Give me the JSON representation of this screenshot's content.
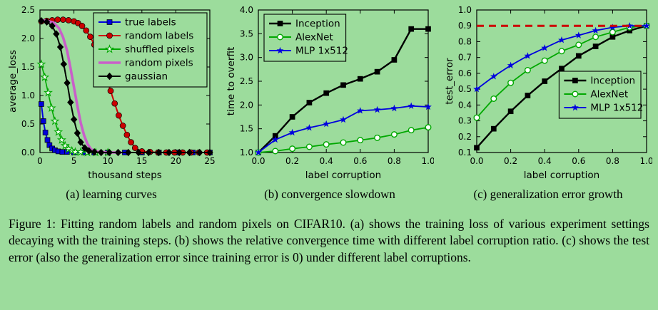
{
  "colors": {
    "background": "#9cdc9c",
    "axis": "#000000",
    "refline_red": "#cc0000"
  },
  "caption": "Figure 1: Fitting random labels and random pixels on CIFAR10. (a) shows the training loss of various experiment settings decaying with the training steps. (b) shows the relative convergence time with different label corruption ratio. (c) shows the test error (also the generalization error since training error is 0) under different label corruptions.",
  "chart_data": [
    {
      "type": "line",
      "name": "learning-curves",
      "subcaption": "(a) learning curves",
      "xlabel": "thousand steps",
      "ylabel": "average_loss",
      "xlim": [
        0,
        25
      ],
      "ylim": [
        0,
        2.5
      ],
      "xticks": [
        0,
        5,
        10,
        15,
        20,
        25
      ],
      "xtick_labels": [
        "0",
        "5",
        "10",
        "15",
        "20",
        "25"
      ],
      "yticks": [
        0.0,
        0.5,
        1.0,
        1.5,
        2.0,
        2.5
      ],
      "ytick_labels": [
        "0.0",
        "0.5",
        "1.0",
        "1.5",
        "2.0",
        "2.5"
      ],
      "grid": false,
      "legend_pos": "upper-right",
      "reflines": [],
      "series": [
        {
          "label": "true labels",
          "color": "#0000dd",
          "marker": "square",
          "width": 2,
          "x": [
            0.2,
            0.5,
            0.8,
            1.1,
            1.4,
            1.8,
            2.2,
            2.7,
            3.3,
            4,
            5,
            6.5,
            8,
            10,
            12.5,
            15,
            17.5,
            20,
            22.5,
            25
          ],
          "y": [
            0.85,
            0.55,
            0.35,
            0.22,
            0.13,
            0.07,
            0.04,
            0.02,
            0.01,
            0.01,
            0,
            0,
            0,
            0,
            0,
            0,
            0,
            0,
            0,
            0
          ]
        },
        {
          "label": "random labels",
          "color": "#cc0000",
          "marker": "circle-filled",
          "width": 2,
          "x": [
            0.2,
            1,
            1.8,
            2.6,
            3.4,
            4.2,
            5,
            5.6,
            6.2,
            6.8,
            7.4,
            8,
            8.6,
            9.2,
            9.8,
            10.4,
            11,
            11.6,
            12.2,
            12.8,
            13.4,
            14,
            15,
            16.2,
            17.4,
            18.6,
            19.8,
            21,
            22.2,
            23.4,
            24.6
          ],
          "y": [
            2.3,
            2.31,
            2.32,
            2.33,
            2.33,
            2.32,
            2.3,
            2.27,
            2.22,
            2.14,
            2.03,
            1.89,
            1.72,
            1.52,
            1.3,
            1.08,
            0.86,
            0.65,
            0.47,
            0.31,
            0.18,
            0.08,
            0.02,
            0.01,
            0,
            0,
            0,
            0,
            0,
            0,
            0
          ]
        },
        {
          "label": "shuffled pixels",
          "color": "#00a800",
          "marker": "star-open",
          "width": 1.6,
          "x": [
            0.2,
            0.7,
            1.2,
            1.7,
            2.2,
            2.7,
            3.2,
            3.7,
            4.2,
            4.7,
            5.2,
            6,
            7,
            8.2,
            10
          ],
          "y": [
            1.55,
            1.32,
            1.05,
            0.78,
            0.55,
            0.36,
            0.22,
            0.12,
            0.06,
            0.03,
            0.01,
            0.01,
            0,
            0,
            0
          ]
        },
        {
          "label": "random pixels",
          "color": "#c95fc9",
          "marker": "none",
          "width": 3.6,
          "x": [
            0.2,
            1,
            2,
            2.8,
            3.4,
            4,
            4.5,
            5,
            5.5,
            6,
            6.5,
            7,
            7.5,
            8,
            9,
            10,
            12
          ],
          "y": [
            2.32,
            2.31,
            2.28,
            2.18,
            2.02,
            1.78,
            1.48,
            1.15,
            0.82,
            0.52,
            0.3,
            0.15,
            0.06,
            0.02,
            0.01,
            0,
            0
          ]
        },
        {
          "label": "gaussian",
          "color": "#000000",
          "marker": "diamond",
          "width": 2,
          "x": [
            0.2,
            1,
            1.8,
            2.4,
            3,
            3.5,
            4,
            4.5,
            5,
            5.5,
            6,
            6.6,
            7.2,
            8,
            9,
            10.2,
            11.5,
            13,
            14.5,
            16,
            17.5,
            19,
            20.5,
            22,
            23.5,
            25
          ],
          "y": [
            2.31,
            2.29,
            2.22,
            2.08,
            1.85,
            1.55,
            1.22,
            0.88,
            0.58,
            0.34,
            0.18,
            0.08,
            0.03,
            0.01,
            0,
            0,
            0,
            0,
            0,
            0,
            0,
            0,
            0,
            0,
            0,
            0
          ]
        }
      ]
    },
    {
      "type": "line",
      "name": "convergence-slowdown",
      "subcaption": "(b) convergence slowdown",
      "xlabel": "label corruption",
      "ylabel": "time to overfit",
      "xlim": [
        0,
        1.0
      ],
      "ylim": [
        1.0,
        4.0
      ],
      "xticks": [
        0,
        0.2,
        0.4,
        0.6,
        0.8,
        1.0
      ],
      "xtick_labels": [
        "0.0",
        "0.2",
        "0.4",
        "0.6",
        "0.8",
        "1.0"
      ],
      "yticks": [
        1.0,
        1.5,
        2.0,
        2.5,
        3.0,
        3.5,
        4.0
      ],
      "ytick_labels": [
        "1.0",
        "1.5",
        "2.0",
        "2.5",
        "3.0",
        "3.5",
        "4.0"
      ],
      "grid": false,
      "legend_pos": "upper-left",
      "reflines": [],
      "series": [
        {
          "label": "Inception",
          "color": "#000000",
          "marker": "square",
          "width": 2.4,
          "x": [
            0,
            0.1,
            0.2,
            0.3,
            0.4,
            0.5,
            0.6,
            0.7,
            0.8,
            0.9,
            1.0
          ],
          "y": [
            1.0,
            1.35,
            1.75,
            2.05,
            2.25,
            2.42,
            2.55,
            2.7,
            2.95,
            3.6,
            3.6
          ]
        },
        {
          "label": "AlexNet",
          "color": "#00a800",
          "marker": "circle-open",
          "width": 1.8,
          "x": [
            0,
            0.1,
            0.2,
            0.3,
            0.4,
            0.5,
            0.6,
            0.7,
            0.8,
            0.9,
            1.0
          ],
          "y": [
            1.0,
            1.03,
            1.08,
            1.12,
            1.17,
            1.21,
            1.26,
            1.31,
            1.38,
            1.47,
            1.53
          ]
        },
        {
          "label": "MLP 1x512",
          "color": "#0000dd",
          "marker": "star",
          "width": 1.8,
          "x": [
            0,
            0.1,
            0.2,
            0.3,
            0.4,
            0.5,
            0.6,
            0.7,
            0.8,
            0.9,
            1.0
          ],
          "y": [
            1.0,
            1.27,
            1.42,
            1.52,
            1.6,
            1.69,
            1.88,
            1.9,
            1.93,
            1.98,
            1.96
          ]
        }
      ]
    },
    {
      "type": "line",
      "name": "generalization-error-growth",
      "subcaption": "(c) generalization error growth",
      "xlabel": "label corruption",
      "ylabel": "test_error",
      "xlim": [
        0,
        1.0
      ],
      "ylim": [
        0.1,
        1.0
      ],
      "xticks": [
        0,
        0.2,
        0.4,
        0.6,
        0.8,
        1.0
      ],
      "xtick_labels": [
        "0.0",
        "0.2",
        "0.4",
        "0.6",
        "0.8",
        "1.0"
      ],
      "yticks": [
        0.1,
        0.2,
        0.3,
        0.4,
        0.5,
        0.6,
        0.7,
        0.8,
        0.9,
        1.0
      ],
      "ytick_labels": [
        "0.1",
        "0.2",
        "0.3",
        "0.4",
        "0.5",
        "0.6",
        "0.7",
        "0.8",
        "0.9",
        "1.0"
      ],
      "grid": false,
      "legend_pos": "middle-right",
      "reflines": [
        {
          "y": 0.9,
          "color": "#cc0000",
          "style": "dashed"
        }
      ],
      "series": [
        {
          "label": "Inception",
          "color": "#000000",
          "marker": "square",
          "width": 2.4,
          "x": [
            0,
            0.1,
            0.2,
            0.3,
            0.4,
            0.5,
            0.6,
            0.7,
            0.8,
            0.9,
            1.0
          ],
          "y": [
            0.13,
            0.25,
            0.36,
            0.46,
            0.55,
            0.63,
            0.71,
            0.77,
            0.83,
            0.87,
            0.9
          ]
        },
        {
          "label": "AlexNet",
          "color": "#00a800",
          "marker": "circle-open",
          "width": 1.8,
          "x": [
            0,
            0.1,
            0.2,
            0.3,
            0.4,
            0.5,
            0.6,
            0.7,
            0.8,
            0.9,
            1.0
          ],
          "y": [
            0.32,
            0.44,
            0.54,
            0.62,
            0.68,
            0.74,
            0.78,
            0.83,
            0.86,
            0.89,
            0.9
          ]
        },
        {
          "label": "MLP 1x512",
          "color": "#0000dd",
          "marker": "star",
          "width": 1.8,
          "x": [
            0,
            0.1,
            0.2,
            0.3,
            0.4,
            0.5,
            0.6,
            0.7,
            0.8,
            0.9,
            1.0
          ],
          "y": [
            0.5,
            0.58,
            0.65,
            0.71,
            0.76,
            0.81,
            0.84,
            0.87,
            0.89,
            0.9,
            0.9
          ]
        }
      ]
    }
  ]
}
